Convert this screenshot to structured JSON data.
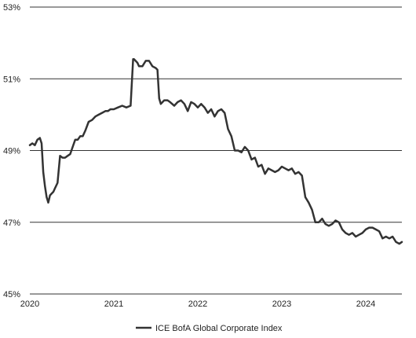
{
  "colors": {
    "line": "#333333",
    "grid": "#333333",
    "text": "#222222",
    "background": "#ffffff"
  },
  "chart_data": {
    "type": "line",
    "title": "",
    "xlabel": "",
    "ylabel": "",
    "grid": true,
    "legend_placement": "bottom-center",
    "xlim": [
      2020.0,
      2024.43
    ],
    "ylim": [
      45,
      53
    ],
    "x_ticks": [
      2020,
      2021,
      2022,
      2023,
      2024
    ],
    "x_tick_labels": [
      "2020",
      "2021",
      "2022",
      "2023",
      "2024"
    ],
    "y_ticks": [
      45,
      47,
      49,
      51,
      53
    ],
    "y_tick_labels": [
      "45%",
      "47%",
      "49%",
      "51%",
      "53%"
    ],
    "series": [
      {
        "name": "ICE BofA Global Corporate Index",
        "color": "#333333",
        "x": [
          2020.0,
          2020.03,
          2020.06,
          2020.09,
          2020.12,
          2020.14,
          2020.16,
          2020.18,
          2020.2,
          2020.22,
          2020.24,
          2020.26,
          2020.28,
          2020.3,
          2020.33,
          2020.36,
          2020.39,
          2020.42,
          2020.45,
          2020.48,
          2020.51,
          2020.54,
          2020.57,
          2020.6,
          2020.63,
          2020.66,
          2020.7,
          2020.74,
          2020.78,
          2020.82,
          2020.86,
          2020.9,
          2020.93,
          2020.96,
          2021.0,
          2021.05,
          2021.1,
          2021.15,
          2021.2,
          2021.23,
          2021.24,
          2021.28,
          2021.3,
          2021.34,
          2021.38,
          2021.42,
          2021.46,
          2021.5,
          2021.52,
          2021.54,
          2021.56,
          2021.6,
          2021.64,
          2021.67,
          2021.72,
          2021.76,
          2021.8,
          2021.84,
          2021.88,
          2021.92,
          2021.96,
          2022.0,
          2022.04,
          2022.08,
          2022.12,
          2022.16,
          2022.2,
          2022.24,
          2022.28,
          2022.32,
          2022.36,
          2022.4,
          2022.44,
          2022.48,
          2022.52,
          2022.56,
          2022.6,
          2022.64,
          2022.68,
          2022.72,
          2022.76,
          2022.8,
          2022.84,
          2022.88,
          2022.92,
          2022.96,
          2023.0,
          2023.04,
          2023.08,
          2023.12,
          2023.16,
          2023.2,
          2023.24,
          2023.28,
          2023.32,
          2023.36,
          2023.4,
          2023.44,
          2023.48,
          2023.52,
          2023.56,
          2023.6,
          2023.64,
          2023.68,
          2023.72,
          2023.76,
          2023.8,
          2023.84,
          2023.88,
          2023.92,
          2023.96,
          2024.0,
          2024.04,
          2024.08,
          2024.12,
          2024.16,
          2024.2,
          2024.24,
          2024.28,
          2024.32,
          2024.36,
          2024.4,
          2024.43
        ],
        "values": [
          49.15,
          49.2,
          49.15,
          49.3,
          49.35,
          49.2,
          48.4,
          48.0,
          47.7,
          47.55,
          47.75,
          47.8,
          47.85,
          47.95,
          48.1,
          48.85,
          48.8,
          48.8,
          48.85,
          48.9,
          49.1,
          49.3,
          49.3,
          49.4,
          49.4,
          49.55,
          49.8,
          49.85,
          49.95,
          50.0,
          50.05,
          50.1,
          50.1,
          50.15,
          50.15,
          50.2,
          50.25,
          50.2,
          50.25,
          51.55,
          51.55,
          51.45,
          51.35,
          51.35,
          51.5,
          51.5,
          51.35,
          51.3,
          51.25,
          50.45,
          50.3,
          50.4,
          50.4,
          50.35,
          50.25,
          50.35,
          50.4,
          50.3,
          50.1,
          50.35,
          50.3,
          50.2,
          50.3,
          50.2,
          50.05,
          50.15,
          49.95,
          50.1,
          50.15,
          50.05,
          49.6,
          49.4,
          49.0,
          49.0,
          48.95,
          49.1,
          49.0,
          48.75,
          48.8,
          48.55,
          48.6,
          48.35,
          48.5,
          48.45,
          48.4,
          48.45,
          48.55,
          48.5,
          48.45,
          48.5,
          48.35,
          48.4,
          48.3,
          47.7,
          47.55,
          47.35,
          47.0,
          47.0,
          47.1,
          46.95,
          46.9,
          46.95,
          47.05,
          47.0,
          46.8,
          46.7,
          46.65,
          46.7,
          46.6,
          46.65,
          46.7,
          46.8,
          46.85,
          46.85,
          46.8,
          46.75,
          46.55,
          46.6,
          46.55,
          46.6,
          46.45,
          46.4,
          46.45
        ]
      }
    ]
  },
  "legend": {
    "label": "ICE BofA Global Corporate Index"
  }
}
